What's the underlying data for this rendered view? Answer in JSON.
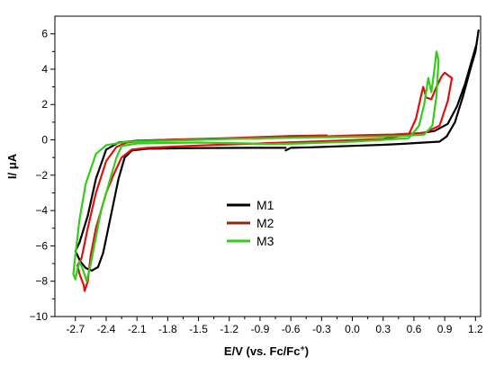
{
  "chart_data": {
    "type": "line",
    "title": "",
    "xlabel": "E/V (vs. Fc/Fc",
    "xlabel_sup": "+",
    "xlabel_end": ")",
    "ylabel": "I/ μA",
    "xlim": [
      -2.9,
      1.25
    ],
    "ylim": [
      -10,
      7
    ],
    "x_ticks": [
      -2.7,
      -2.4,
      -2.1,
      -1.8,
      -1.5,
      -1.2,
      -0.9,
      -0.6,
      -0.3,
      0.0,
      0.3,
      0.6,
      0.9,
      1.2
    ],
    "x_tick_labels": [
      "-2.7",
      "-2.4",
      "-2.1",
      "-1.8",
      "-1.5",
      "-1.2",
      "-0.9",
      "-0.6",
      "-0.3",
      "0.0",
      "0.3",
      "0.6",
      "0.9",
      "1.2"
    ],
    "y_ticks": [
      -10,
      -8,
      -6,
      -4,
      -2,
      0,
      2,
      4,
      6
    ],
    "y_tick_labels": [
      "−10",
      "−8",
      "−6",
      "−4",
      "−2",
      "0",
      "2",
      "4",
      "6"
    ],
    "grid": false,
    "legend_position": "center",
    "series": [
      {
        "name": "M1",
        "color": "#000000",
        "points": [
          [
            -0.65,
            -0.6
          ],
          [
            -0.6,
            -0.45
          ],
          [
            -0.4,
            -0.42
          ],
          [
            -0.2,
            -0.38
          ],
          [
            0.0,
            -0.34
          ],
          [
            0.3,
            -0.28
          ],
          [
            0.5,
            -0.22
          ],
          [
            0.7,
            -0.15
          ],
          [
            0.85,
            -0.1
          ],
          [
            0.92,
            0.2
          ],
          [
            1.0,
            1.0
          ],
          [
            1.08,
            2.5
          ],
          [
            1.15,
            4.0
          ],
          [
            1.2,
            5.0
          ],
          [
            1.23,
            6.2
          ],
          [
            1.21,
            5.4
          ],
          [
            1.16,
            4.4
          ],
          [
            1.1,
            3.2
          ],
          [
            1.02,
            1.9
          ],
          [
            0.93,
            0.9
          ],
          [
            0.8,
            0.5
          ],
          [
            0.6,
            0.32
          ],
          [
            0.3,
            0.25
          ],
          [
            0.0,
            0.2
          ],
          [
            -0.6,
            0.15
          ],
          [
            -1.2,
            0.08
          ],
          [
            -1.8,
            0.0
          ],
          [
            -2.1,
            -0.05
          ],
          [
            -2.28,
            -0.15
          ],
          [
            -2.4,
            -0.55
          ],
          [
            -2.5,
            -2.2
          ],
          [
            -2.58,
            -4.3
          ],
          [
            -2.66,
            -5.8
          ],
          [
            -2.7,
            -6.3
          ],
          [
            -2.65,
            -6.9
          ],
          [
            -2.6,
            -7.25
          ],
          [
            -2.54,
            -7.4
          ],
          [
            -2.48,
            -7.2
          ],
          [
            -2.43,
            -6.4
          ],
          [
            -2.38,
            -5.0
          ],
          [
            -2.33,
            -3.6
          ],
          [
            -2.28,
            -2.2
          ],
          [
            -2.22,
            -1.0
          ],
          [
            -2.15,
            -0.6
          ],
          [
            -2.0,
            -0.5
          ],
          [
            -1.5,
            -0.46
          ],
          [
            -1.0,
            -0.45
          ],
          [
            -0.65,
            -0.45
          ]
        ]
      },
      {
        "name": "M2",
        "color": "#e01010",
        "points": [
          [
            -0.25,
            0.25
          ],
          [
            -0.6,
            0.22
          ],
          [
            -1.2,
            0.1
          ],
          [
            -1.8,
            0.0
          ],
          [
            -2.05,
            -0.05
          ],
          [
            -2.2,
            -0.15
          ],
          [
            -2.3,
            -0.4
          ],
          [
            -2.4,
            -1.2
          ],
          [
            -2.5,
            -3.0
          ],
          [
            -2.58,
            -5.0
          ],
          [
            -2.64,
            -6.7
          ],
          [
            -2.68,
            -7.1
          ],
          [
            -2.66,
            -7.6
          ],
          [
            -2.62,
            -8.2
          ],
          [
            -2.61,
            -8.55
          ],
          [
            -2.58,
            -8.0
          ],
          [
            -2.55,
            -6.5
          ],
          [
            -2.5,
            -5.0
          ],
          [
            -2.45,
            -4.0
          ],
          [
            -2.4,
            -3.0
          ],
          [
            -2.33,
            -2.0
          ],
          [
            -2.25,
            -1.0
          ],
          [
            -2.15,
            -0.55
          ],
          [
            -2.0,
            -0.45
          ],
          [
            -1.5,
            -0.32
          ],
          [
            -1.0,
            -0.22
          ],
          [
            -0.5,
            -0.12
          ],
          [
            0.0,
            -0.02
          ],
          [
            0.3,
            0.05
          ],
          [
            0.55,
            0.3
          ],
          [
            0.62,
            1.2
          ],
          [
            0.67,
            2.5
          ],
          [
            0.69,
            3.0
          ],
          [
            0.72,
            2.4
          ],
          [
            0.77,
            2.3
          ],
          [
            0.82,
            3.0
          ],
          [
            0.87,
            3.6
          ],
          [
            0.9,
            3.8
          ],
          [
            0.97,
            3.5
          ],
          [
            0.93,
            2.2
          ],
          [
            0.85,
            0.8
          ],
          [
            0.7,
            0.4
          ],
          [
            0.4,
            0.3
          ],
          [
            0.0,
            0.25
          ],
          [
            -0.25,
            0.2
          ]
        ]
      },
      {
        "name": "M3",
        "color": "#33cc1a",
        "points": [
          [
            -0.8,
            -0.25
          ],
          [
            -0.5,
            -0.2
          ],
          [
            0.0,
            -0.1
          ],
          [
            0.3,
            0.0
          ],
          [
            0.55,
            0.1
          ],
          [
            0.65,
            0.8
          ],
          [
            0.7,
            2.0
          ],
          [
            0.74,
            3.5
          ],
          [
            0.77,
            2.7
          ],
          [
            0.8,
            4.0
          ],
          [
            0.82,
            5.0
          ],
          [
            0.84,
            4.5
          ],
          [
            0.82,
            2.5
          ],
          [
            0.78,
            0.8
          ],
          [
            0.7,
            0.3
          ],
          [
            0.5,
            0.22
          ],
          [
            0.2,
            0.18
          ],
          [
            -0.4,
            0.14
          ],
          [
            -1.2,
            0.05
          ],
          [
            -1.8,
            -0.05
          ],
          [
            -2.2,
            -0.1
          ],
          [
            -2.4,
            -0.3
          ],
          [
            -2.5,
            -0.8
          ],
          [
            -2.6,
            -2.5
          ],
          [
            -2.66,
            -4.5
          ],
          [
            -2.7,
            -6.5
          ],
          [
            -2.72,
            -7.6
          ],
          [
            -2.7,
            -7.9
          ],
          [
            -2.68,
            -7.3
          ],
          [
            -2.66,
            -6.9
          ],
          [
            -2.63,
            -7.3
          ],
          [
            -2.59,
            -8.0
          ],
          [
            -2.55,
            -7.0
          ],
          [
            -2.5,
            -5.5
          ],
          [
            -2.45,
            -4.0
          ],
          [
            -2.4,
            -3.0
          ],
          [
            -2.35,
            -2.0
          ],
          [
            -2.3,
            -1.0
          ],
          [
            -2.25,
            -0.35
          ],
          [
            -2.1,
            -0.2
          ],
          [
            -1.5,
            -0.15
          ],
          [
            -1.0,
            -0.2
          ],
          [
            -0.8,
            -0.25
          ]
        ]
      }
    ]
  }
}
